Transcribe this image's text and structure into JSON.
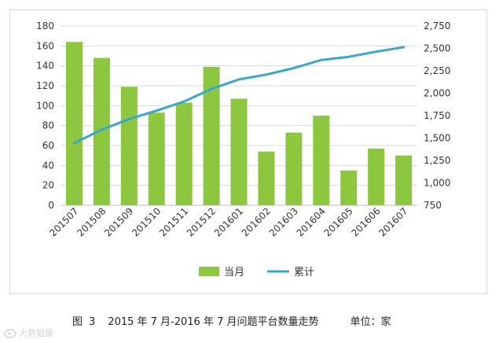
{
  "chart_data": {
    "type": "bar+line",
    "categories": [
      "201507",
      "201508",
      "201509",
      "201510",
      "201511",
      "201512",
      "201601",
      "201602",
      "201603",
      "201604",
      "201605",
      "201606",
      "201607"
    ],
    "series": [
      {
        "name": "当月",
        "type": "bar",
        "axis": "left",
        "values": [
          164,
          148,
          119,
          93,
          103,
          139,
          107,
          54,
          73,
          90,
          35,
          57,
          50
        ]
      },
      {
        "name": "累计",
        "type": "line",
        "axis": "right",
        "values": [
          1445,
          1593,
          1712,
          1805,
          1908,
          2047,
          2154,
          2208,
          2281,
          2371,
          2406,
          2463,
          2513
        ]
      }
    ],
    "y_left": {
      "min": 0,
      "max": 180,
      "ticks": [
        0,
        20,
        40,
        60,
        80,
        100,
        120,
        140,
        160,
        180
      ],
      "tick_labels": [
        "0",
        "20",
        "40",
        "60",
        "80",
        "100",
        "120",
        "140",
        "160",
        "180"
      ]
    },
    "y_right": {
      "min": 750,
      "max": 2750,
      "ticks": [
        750,
        1000,
        1250,
        1500,
        1750,
        2000,
        2250,
        2500,
        2750
      ],
      "tick_labels": [
        "750",
        "1,000",
        "1,250",
        "1,500",
        "1,750",
        "2,000",
        "2,250",
        "2,500",
        "2,750"
      ]
    },
    "grid": true,
    "legend_position": "bottom"
  },
  "colors": {
    "bar": "#8dc63f",
    "line": "#3aa6c8",
    "grid": "#d9d9d9",
    "text": "#333333"
  },
  "caption": {
    "figure": "图",
    "number": "3",
    "title": "2015 年 7 月-2016 年 7 月问题平台数量走势",
    "unit": "单位：家"
  },
  "watermark": {
    "text": "大数据媛",
    "icon": "weibo-icon"
  }
}
